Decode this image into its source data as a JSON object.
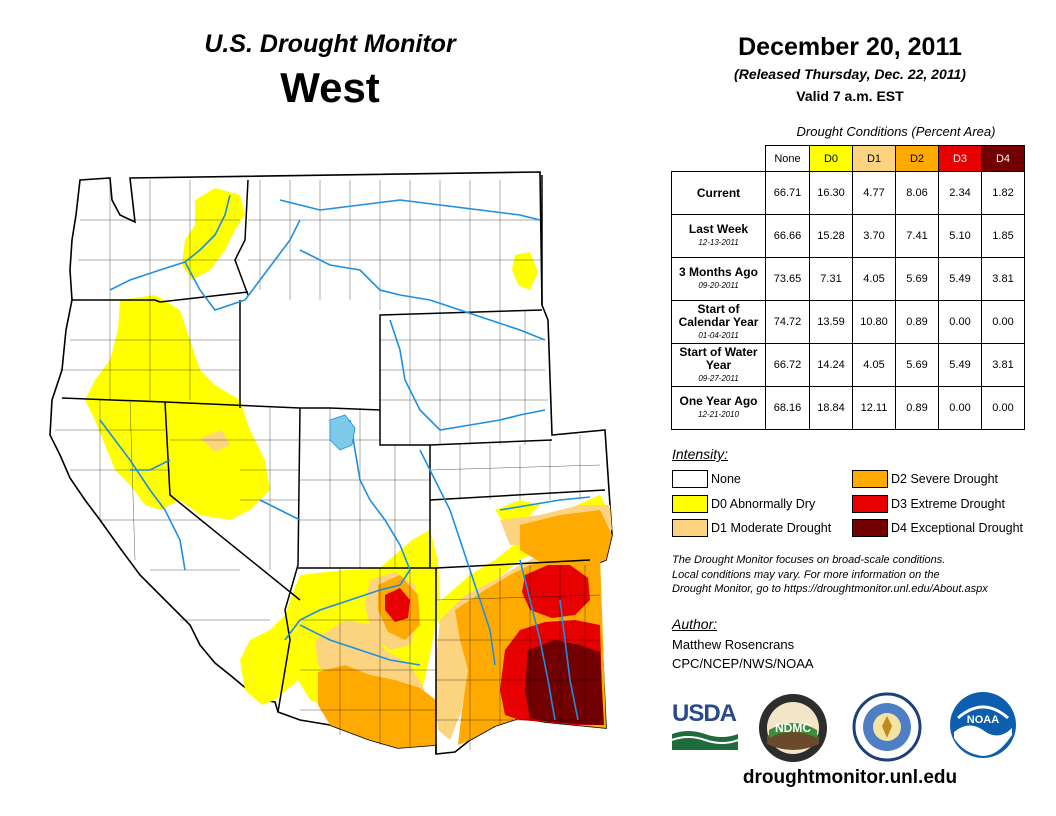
{
  "header": {
    "title": "U.S. Drought Monitor",
    "region": "West"
  },
  "date": {
    "main": "December 20, 2011",
    "released": "(Released Thursday, Dec. 22, 2011)",
    "valid": "Valid 7 a.m. EST"
  },
  "table": {
    "caption": "Drought Conditions (Percent Area)",
    "columns": [
      "None",
      "D0",
      "D1",
      "D2",
      "D3",
      "D4"
    ],
    "rows": [
      {
        "label": "Current",
        "sub": "",
        "values": [
          "66.71",
          "16.30",
          "4.77",
          "8.06",
          "2.34",
          "1.82"
        ]
      },
      {
        "label": "Last Week",
        "sub": "12-13-2011",
        "values": [
          "66.66",
          "15.28",
          "3.70",
          "7.41",
          "5.10",
          "1.85"
        ]
      },
      {
        "label": "3 Months Ago",
        "sub": "09-20-2011",
        "values": [
          "73.65",
          "7.31",
          "4.05",
          "5.69",
          "5.49",
          "3.81"
        ]
      },
      {
        "label": "Start of Calendar Year",
        "sub": "01-04-2011",
        "values": [
          "74.72",
          "13.59",
          "10.80",
          "0.89",
          "0.00",
          "0.00"
        ]
      },
      {
        "label": "Start of Water Year",
        "sub": "09-27-2011",
        "values": [
          "66.72",
          "14.24",
          "4.05",
          "5.69",
          "5.49",
          "3.81"
        ]
      },
      {
        "label": "One Year Ago",
        "sub": "12-21-2010",
        "values": [
          "68.16",
          "18.84",
          "12.11",
          "0.89",
          "0.00",
          "0.00"
        ]
      }
    ]
  },
  "intensity": {
    "title": "Intensity:",
    "items": [
      {
        "label": "None",
        "color": "#ffffff"
      },
      {
        "label": "D0 Abnormally Dry",
        "color": "#ffff00"
      },
      {
        "label": "D1 Moderate Drought",
        "color": "#fcd37f"
      },
      {
        "label": "D2 Severe Drought",
        "color": "#ffaa00"
      },
      {
        "label": "D3 Extreme Drought",
        "color": "#e60000"
      },
      {
        "label": "D4 Exceptional Drought",
        "color": "#730000"
      }
    ]
  },
  "note": {
    "line1": "The Drought Monitor focuses on broad-scale conditions.",
    "line2": "Local conditions may vary. For more information on the",
    "line3": "Drought Monitor, go to https://droughtmonitor.unl.edu/About.aspx"
  },
  "author": {
    "title": "Author:",
    "name": "Matthew Rosencrans",
    "org": "CPC/NCEP/NWS/NOAA"
  },
  "logos": {
    "usda": "USDA",
    "ndmc": "NDMC",
    "noaa": "NOAA"
  },
  "website": "droughtmonitor.unl.edu",
  "colors": {
    "river": "#1e8fe0",
    "lake": "#7ec8e8",
    "border": "#000000"
  }
}
